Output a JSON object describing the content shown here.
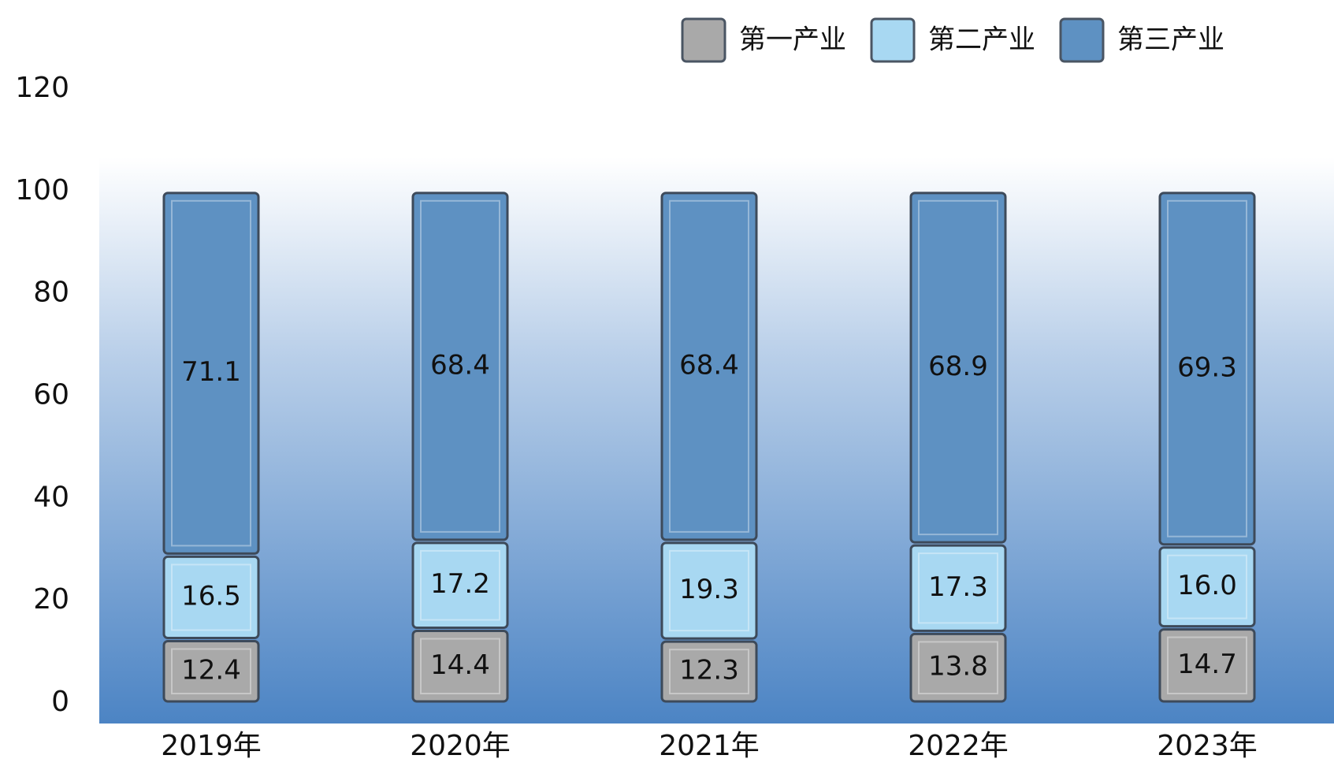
{
  "chart_data": {
    "type": "stacked-bar",
    "categories": [
      "2019年",
      "2020年",
      "2021年",
      "2022年",
      "2023年"
    ],
    "series": [
      {
        "name": "第一产业",
        "color": "#a9a9a9",
        "values": [
          12.4,
          14.4,
          12.3,
          13.8,
          14.7
        ],
        "value_labels": [
          "12.4",
          "14.4",
          "12.3",
          "13.8",
          "14.7"
        ]
      },
      {
        "name": "第二产业",
        "color": "#a8d8f2",
        "values": [
          16.5,
          17.2,
          19.3,
          17.3,
          16.0
        ],
        "value_labels": [
          "16.5",
          "17.2",
          "19.3",
          "17.3",
          "16.0"
        ]
      },
      {
        "name": "第三产业",
        "color": "#5e91c2",
        "values": [
          71.1,
          68.4,
          68.4,
          68.9,
          69.3
        ],
        "value_labels": [
          "71.1",
          "68.4",
          "68.4",
          "68.9",
          "69.3"
        ]
      }
    ],
    "ylim": [
      0,
      120
    ],
    "yticks": [
      0,
      20,
      40,
      60,
      80,
      100,
      120
    ],
    "grid": false,
    "legend": "top-right"
  }
}
